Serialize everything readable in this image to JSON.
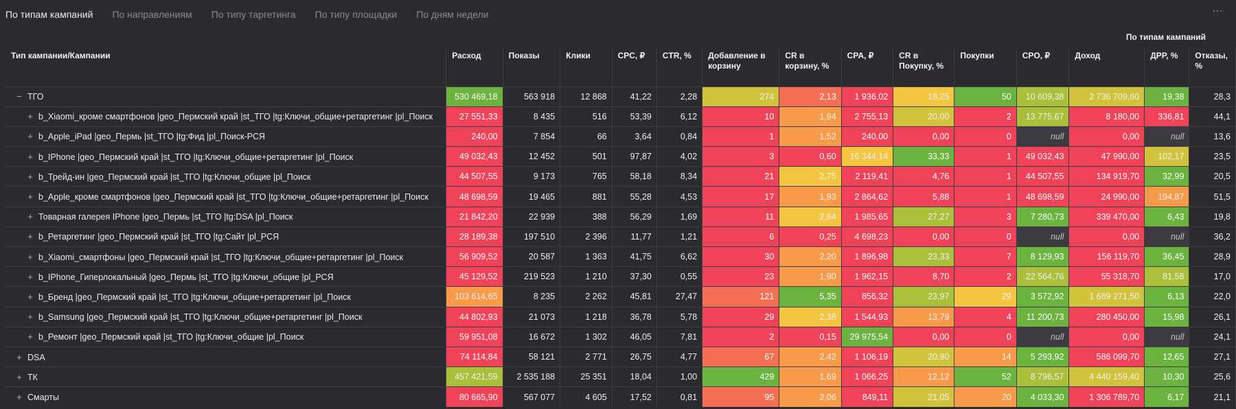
{
  "tabs": [
    {
      "label": "По типам кампаний",
      "active": true
    },
    {
      "label": "По направлениям",
      "active": false
    },
    {
      "label": "По типу таргетинга",
      "active": false
    },
    {
      "label": "По типу площадки",
      "active": false
    },
    {
      "label": "По дням недели",
      "active": false
    }
  ],
  "more_icon": "more-horizontal-icon",
  "table_title": "По типам кампаний",
  "columns": [
    "Тип кампании/Кампании",
    "Расход",
    "Показы",
    "Клики",
    "CPC, ₽",
    "CTR, %",
    "Добавление в корзину",
    "CR в корзину, %",
    "CPA, ₽",
    "CR в Покупку, %",
    "Покупки",
    "CPO, ₽",
    "Доход",
    "ДРР, %",
    "Отказы, %"
  ],
  "rows": [
    {
      "name": "ТГО",
      "level": 0,
      "ctl": "−",
      "cells": [
        "530 469,18",
        "563 918",
        "12 868",
        "41,22",
        "2,28",
        "274",
        "2,13",
        "1 936,02",
        "18,25",
        "50",
        "10 609,38",
        "2 736 709,60",
        "19,38",
        "28,3"
      ]
    },
    {
      "name": "b_Xiaomi_кроме смартфонов |geo_Пермский край |st_ТГО |tg:Ключи_общие+ретаргетинг |pl_Поиск",
      "level": 1,
      "ctl": "+",
      "cells": [
        "27 551,33",
        "8 435",
        "516",
        "53,39",
        "6,12",
        "10",
        "1,94",
        "2 755,13",
        "20,00",
        "2",
        "13 775,67",
        "8 180,00",
        "336,81",
        "44,1"
      ]
    },
    {
      "name": "b_Apple_iPad |geo_Пермь |st_ТГО |tg:Фид |pl_Поиск-РСЯ",
      "level": 1,
      "ctl": "+",
      "cells": [
        "240,00",
        "7 854",
        "66",
        "3,64",
        "0,84",
        "1",
        "1,52",
        "240,00",
        "0,00",
        "0",
        "null",
        "0,00",
        "null",
        "13,6"
      ]
    },
    {
      "name": "b_IPhone |geo_Пермский край |st_ТГО |tg:Ключи_общие+ретаргетинг |pl_Поиск",
      "level": 1,
      "ctl": "+",
      "cells": [
        "49 032,43",
        "12 452",
        "501",
        "97,87",
        "4,02",
        "3",
        "0,60",
        "16 344,14",
        "33,33",
        "1",
        "49 032,43",
        "47 990,00",
        "102,17",
        "23,5"
      ]
    },
    {
      "name": "b_Трейд-ин |geo_Пермский край |st_ТГО |tg:Ключи_общие |pl_Поиск",
      "level": 1,
      "ctl": "+",
      "cells": [
        "44 507,55",
        "9 173",
        "765",
        "58,18",
        "8,34",
        "21",
        "2,75",
        "2 119,41",
        "4,76",
        "1",
        "44 507,55",
        "134 919,70",
        "32,99",
        "20,5"
      ]
    },
    {
      "name": "b_Apple_кроме смартфонов |geo_Пермский край |st_ТГО |tg:Ключи_общие+ретаргетинг |pl_Поиск",
      "level": 1,
      "ctl": "+",
      "cells": [
        "48 698,59",
        "19 465",
        "881",
        "55,28",
        "4,53",
        "17",
        "1,93",
        "2 864,62",
        "5,88",
        "1",
        "48 698,59",
        "24 990,00",
        "194,87",
        "51,5"
      ]
    },
    {
      "name": "Товарная галерея IPhone |geo_Пермь |st_ТГО |tg:DSA |pl_Поиск",
      "level": 1,
      "ctl": "+",
      "cells": [
        "21 842,20",
        "22 939",
        "388",
        "56,29",
        "1,69",
        "11",
        "2,84",
        "1 985,65",
        "27,27",
        "3",
        "7 280,73",
        "339 470,00",
        "6,43",
        "19,8"
      ]
    },
    {
      "name": "b_Ретаргетинг |geo_Пермский край |st_ТГО |tg:Сайт |pl_РСЯ",
      "level": 1,
      "ctl": "+",
      "cells": [
        "28 189,38",
        "197 510",
        "2 396",
        "11,77",
        "1,21",
        "6",
        "0,25",
        "4 698,23",
        "0,00",
        "0",
        "null",
        "0,00",
        "null",
        "36,2"
      ]
    },
    {
      "name": "b_Xiaomi_смартфоны |geo_Пермский край |st_ТГО |tg:Ключи_общие+ретаргетинг |pl_Поиск",
      "level": 1,
      "ctl": "+",
      "cells": [
        "56 909,52",
        "20 587",
        "1 363",
        "41,75",
        "6,62",
        "30",
        "2,20",
        "1 896,98",
        "23,33",
        "7",
        "8 129,93",
        "156 119,70",
        "36,45",
        "28,9"
      ]
    },
    {
      "name": "b_IPhone_Гиперлокальный |geo_Пермь |st_ТГО |tg:Ключи_общие |pl_РСЯ",
      "level": 1,
      "ctl": "+",
      "cells": [
        "45 129,52",
        "219 523",
        "1 210",
        "37,30",
        "0,55",
        "23",
        "1,90",
        "1 962,15",
        "8,70",
        "2",
        "22 564,76",
        "55 318,70",
        "81,58",
        "17,0"
      ]
    },
    {
      "name": "b_Бренд |geo_Пермский край |st_ТГО |tg:Ключи_общие+ретаргетинг |pl_Поиск",
      "level": 1,
      "ctl": "+",
      "cells": [
        "103 614,65",
        "8 235",
        "2 262",
        "45,81",
        "27,47",
        "121",
        "5,35",
        "856,32",
        "23,97",
        "29",
        "3 572,92",
        "1 689 271,50",
        "6,13",
        "22,0"
      ]
    },
    {
      "name": "b_Samsung |geo_Пермский край |st_ТГО |tg:Ключи_общие+ретаргетинг |pl_Поиск",
      "level": 1,
      "ctl": "+",
      "cells": [
        "44 802,93",
        "21 073",
        "1 218",
        "36,78",
        "5,78",
        "29",
        "2,38",
        "1 544,93",
        "13,79",
        "4",
        "11 200,73",
        "280 450,00",
        "15,98",
        "26,1"
      ]
    },
    {
      "name": "b_Ремонт |geo_Пермский край |st_ТГО |tg:Ключи_общие |pl_Поиск",
      "level": 1,
      "ctl": "+",
      "cells": [
        "59 951,08",
        "16 672",
        "1 302",
        "46,05",
        "7,81",
        "2",
        "0,15",
        "29 975,54",
        "0,00",
        "0",
        "null",
        "0,00",
        "null",
        "24,1"
      ]
    },
    {
      "name": "DSA",
      "level": 0,
      "ctl": "+",
      "cells": [
        "74 114,84",
        "58 121",
        "2 771",
        "26,75",
        "4,77",
        "67",
        "2,42",
        "1 106,19",
        "20,90",
        "14",
        "5 293,92",
        "586 099,70",
        "12,65",
        "27,1"
      ]
    },
    {
      "name": "ТК",
      "level": 0,
      "ctl": "+",
      "cells": [
        "457 421,59",
        "2 535 188",
        "25 351",
        "18,04",
        "1,00",
        "429",
        "1,69",
        "1 066,25",
        "12,12",
        "52",
        "8 796,57",
        "4 440 159,40",
        "10,30",
        "25,6"
      ]
    },
    {
      "name": "Смарты",
      "level": 0,
      "ctl": "+",
      "cells": [
        "80 665,90",
        "567 077",
        "4 605",
        "17,52",
        "0,81",
        "95",
        "2,06",
        "849,11",
        "21,05",
        "20",
        "4 033,30",
        "1 306 789,70",
        "6,17",
        "21,1"
      ]
    }
  ],
  "heat_colors": {
    "red": "#f0435a",
    "salmon": "#f56f54",
    "orange": "#f79a4a",
    "yellow": "#f4c540",
    "olive": "#d1c33c",
    "lime": "#abc03a",
    "green": "#6bb23f",
    "null": "#3a3a40"
  },
  "heat": [
    [
      "green",
      null,
      null,
      null,
      null,
      "olive",
      "salmon",
      "red",
      "yellow",
      "green",
      "lime",
      "olive",
      "green",
      null
    ],
    [
      "red",
      null,
      null,
      null,
      null,
      "red",
      "orange",
      "red",
      "olive",
      "red",
      "lime",
      "red",
      "red",
      null
    ],
    [
      "red",
      null,
      null,
      null,
      null,
      "red",
      "orange",
      "red",
      "red",
      "red",
      "null",
      "red",
      "null",
      null
    ],
    [
      "red",
      null,
      null,
      null,
      null,
      "red",
      "red",
      "yellow",
      "green",
      "red",
      "red",
      "red",
      "olive",
      null
    ],
    [
      "red",
      null,
      null,
      null,
      null,
      "red",
      "yellow",
      "red",
      "red",
      "red",
      "red",
      "red",
      "green",
      null
    ],
    [
      "red",
      null,
      null,
      null,
      null,
      "red",
      "orange",
      "red",
      "red",
      "red",
      "red",
      "red",
      "orange",
      null
    ],
    [
      "red",
      null,
      null,
      null,
      null,
      "red",
      "yellow",
      "red",
      "lime",
      "red",
      "green",
      "red",
      "green",
      null
    ],
    [
      "red",
      null,
      null,
      null,
      null,
      "red",
      "red",
      "red",
      "red",
      "red",
      "null",
      "red",
      "null",
      null
    ],
    [
      "red",
      null,
      null,
      null,
      null,
      "red",
      "orange",
      "red",
      "lime",
      "red",
      "green",
      "red",
      "green",
      null
    ],
    [
      "red",
      null,
      null,
      null,
      null,
      "red",
      "orange",
      "red",
      "red",
      "red",
      "lime",
      "red",
      "lime",
      null
    ],
    [
      "orange",
      null,
      null,
      null,
      null,
      "salmon",
      "green",
      "red",
      "lime",
      "yellow",
      "green",
      "olive",
      "green",
      null
    ],
    [
      "red",
      null,
      null,
      null,
      null,
      "red",
      "yellow",
      "red",
      "orange",
      "red",
      "green",
      "red",
      "green",
      null
    ],
    [
      "red",
      null,
      null,
      null,
      null,
      "red",
      "red",
      "green",
      "red",
      "red",
      "null",
      "red",
      "null",
      null
    ],
    [
      "red",
      null,
      null,
      null,
      null,
      "salmon",
      "orange",
      "red",
      "olive",
      "orange",
      "green",
      "red",
      "green",
      null
    ],
    [
      "lime",
      null,
      null,
      null,
      null,
      "green",
      "orange",
      "red",
      "orange",
      "green",
      "lime",
      "olive",
      "green",
      null
    ],
    [
      "red",
      null,
      null,
      null,
      null,
      "salmon",
      "orange",
      "red",
      "olive",
      "orange",
      "green",
      "red",
      "green",
      null
    ]
  ]
}
